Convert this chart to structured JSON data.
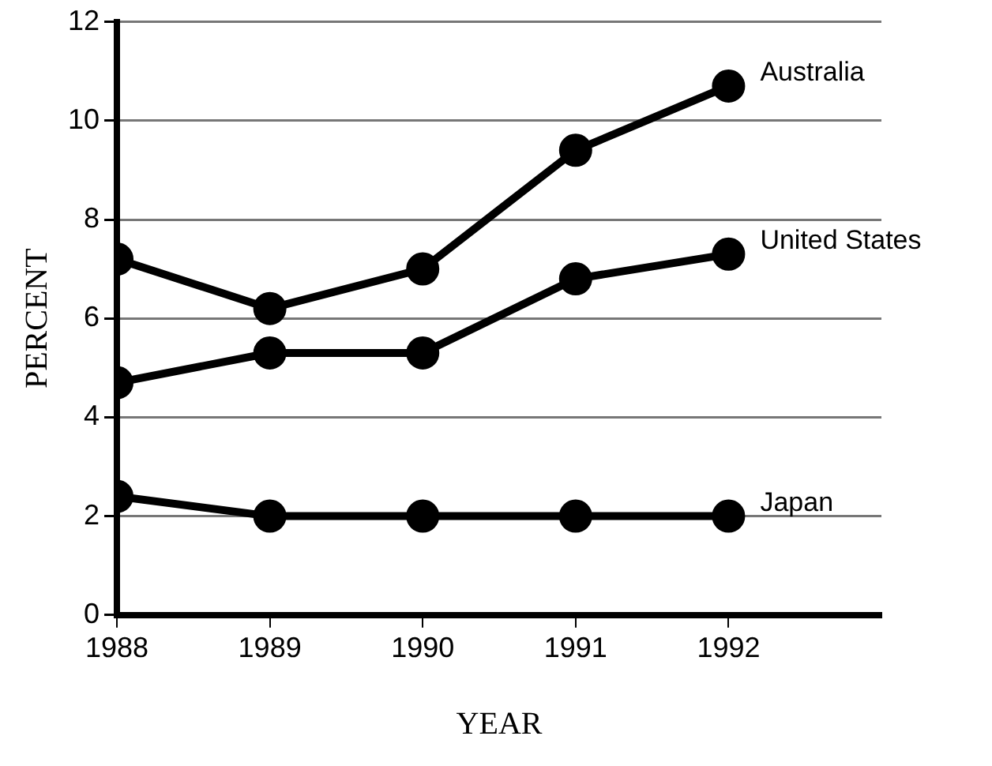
{
  "chart_data": {
    "type": "line",
    "xlabel": "YEAR",
    "ylabel": "PERCENT",
    "x": [
      1988,
      1989,
      1990,
      1991,
      1992
    ],
    "series": [
      {
        "name": "Australia",
        "color": "#000000",
        "values": [
          7.2,
          6.2,
          7.0,
          9.4,
          10.7
        ]
      },
      {
        "name": "United States",
        "color": "#000000",
        "values": [
          4.7,
          5.3,
          5.3,
          6.8,
          7.3
        ]
      },
      {
        "name": "Japan",
        "color": "#000000",
        "values": [
          2.4,
          2.0,
          2.0,
          2.0,
          2.0
        ]
      }
    ],
    "xlim": [
      1988,
      1993
    ],
    "xticks": [
      1988,
      1989,
      1990,
      1991,
      1992
    ],
    "ylim": [
      0,
      12
    ],
    "yticks": [
      0,
      2,
      4,
      6,
      8,
      10,
      12
    ],
    "grid": "y",
    "legend": false,
    "marker": "circle",
    "line_style": "solid"
  }
}
